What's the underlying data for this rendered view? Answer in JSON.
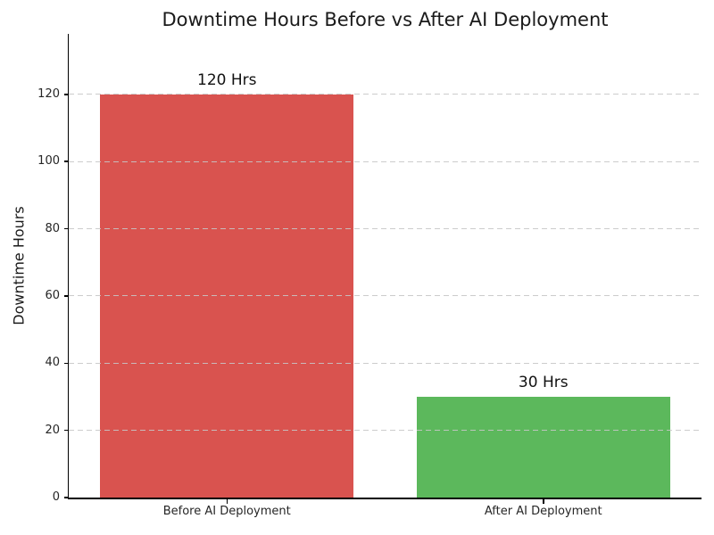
{
  "chart_data": {
    "type": "bar",
    "title": "Downtime Hours Before vs After AI Deployment",
    "xlabel": "",
    "ylabel": "Downtime Hours",
    "categories": [
      "Before AI Deployment",
      "After AI Deployment"
    ],
    "values": [
      120,
      30
    ],
    "bar_labels": [
      "120 Hrs",
      "30 Hrs"
    ],
    "bar_colors": [
      "#d9534f",
      "#5cb85c"
    ],
    "yticks": [
      0,
      20,
      40,
      60,
      80,
      100,
      120
    ],
    "ylim": [
      0,
      138
    ],
    "grid": "horizontal-dashed",
    "grid_color": "#c6c6c6",
    "legend_position": "none"
  }
}
